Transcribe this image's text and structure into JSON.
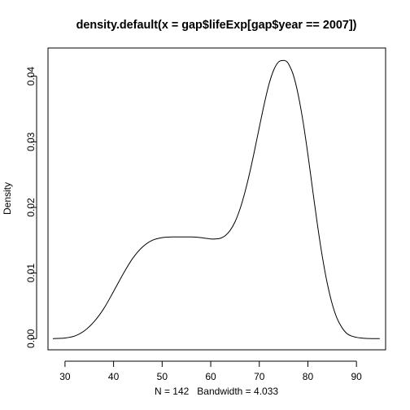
{
  "chart_data": {
    "type": "line",
    "title": "density.default(x = gap$lifeExp[gap$year == 2007])",
    "xlabel": "N = 142   Bandwidth = 4.033",
    "ylabel": "Density",
    "xlim": [
      26.5,
      96
    ],
    "ylim": [
      -0.0017,
      0.0443
    ],
    "x_ticks": [
      30,
      40,
      50,
      60,
      70,
      80,
      90
    ],
    "x_tick_labels": [
      "30",
      "40",
      "50",
      "60",
      "70",
      "80",
      "90"
    ],
    "y_ticks": [
      0.0,
      0.01,
      0.02,
      0.03,
      0.04
    ],
    "y_tick_labels": [
      "0.00",
      "0.01",
      "0.02",
      "0.03",
      "0.04"
    ],
    "grid": false,
    "series": [
      {
        "x": [
          27.5,
          30,
          32,
          34,
          36,
          38,
          40,
          42,
          44,
          46,
          48,
          50,
          52,
          54,
          56,
          58,
          60,
          61,
          62,
          63,
          64,
          65,
          66,
          67,
          68,
          69,
          70,
          71,
          72,
          73,
          74,
          75,
          75.5,
          76,
          77,
          78,
          79,
          80,
          81,
          82,
          83,
          84,
          85,
          86,
          87,
          88,
          89,
          90,
          91,
          92,
          93,
          94,
          94.8
        ],
        "y": [
          0.0,
          0.0001,
          0.0004,
          0.0012,
          0.0026,
          0.0046,
          0.0072,
          0.0099,
          0.0123,
          0.014,
          0.015,
          0.0154,
          0.0155,
          0.0155,
          0.0155,
          0.0154,
          0.0152,
          0.0152,
          0.0153,
          0.0157,
          0.0165,
          0.0178,
          0.0197,
          0.0222,
          0.0252,
          0.0286,
          0.0322,
          0.0357,
          0.0388,
          0.041,
          0.0422,
          0.0424,
          0.0423,
          0.0419,
          0.0402,
          0.0372,
          0.0331,
          0.0281,
          0.0226,
          0.0172,
          0.0124,
          0.0084,
          0.0053,
          0.0031,
          0.0017,
          0.0008,
          0.0004,
          0.0002,
          0.0001,
          3e-05,
          1e-05,
          0.0,
          0.0
        ]
      }
    ]
  }
}
